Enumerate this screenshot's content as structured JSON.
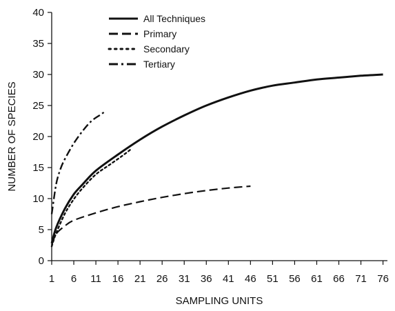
{
  "chart_data": {
    "type": "line",
    "xlabel": "SAMPLING UNITS",
    "ylabel": "NUMBER OF SPECIES",
    "xlim": [
      1,
      77
    ],
    "ylim": [
      0,
      40
    ],
    "xticks": [
      "1",
      "6",
      "11",
      "16",
      "21",
      "26",
      "31",
      "36",
      "41",
      "46",
      "51",
      "56",
      "61",
      "66",
      "71",
      "76"
    ],
    "yticks": [
      "0",
      "5",
      "10",
      "15",
      "20",
      "25",
      "30",
      "35",
      "40"
    ],
    "legend_position": "top-left",
    "grid": false,
    "series": [
      {
        "name": "All Techniques",
        "style": "solid",
        "x": [
          1,
          2,
          4,
          6,
          8,
          11,
          16,
          21,
          26,
          31,
          36,
          41,
          46,
          51,
          56,
          61,
          66,
          71,
          76
        ],
        "y": [
          2.8,
          5.3,
          8.4,
          10.7,
          12.3,
          14.5,
          17.1,
          19.5,
          21.6,
          23.4,
          25.0,
          26.3,
          27.4,
          28.2,
          28.7,
          29.2,
          29.5,
          29.8,
          30.0
        ]
      },
      {
        "name": "Primary",
        "style": "dashed",
        "x": [
          1,
          2,
          4,
          6,
          11,
          16,
          21,
          26,
          31,
          36,
          41,
          46
        ],
        "y": [
          2.5,
          4.3,
          5.6,
          6.5,
          7.7,
          8.7,
          9.5,
          10.2,
          10.8,
          11.3,
          11.7,
          12.0
        ]
      },
      {
        "name": "Secondary",
        "style": "dotted",
        "x": [
          1,
          2,
          4,
          6,
          8,
          11,
          14,
          17,
          19
        ],
        "y": [
          2.3,
          4.4,
          7.6,
          9.9,
          11.7,
          13.9,
          15.4,
          16.9,
          18.0
        ]
      },
      {
        "name": "Tertiary",
        "style": "dash-dot",
        "x": [
          1,
          2,
          3,
          4,
          6,
          8,
          10,
          12,
          13
        ],
        "y": [
          7.5,
          12.3,
          14.8,
          16.4,
          18.9,
          20.9,
          22.5,
          23.5,
          24.0
        ]
      }
    ]
  }
}
